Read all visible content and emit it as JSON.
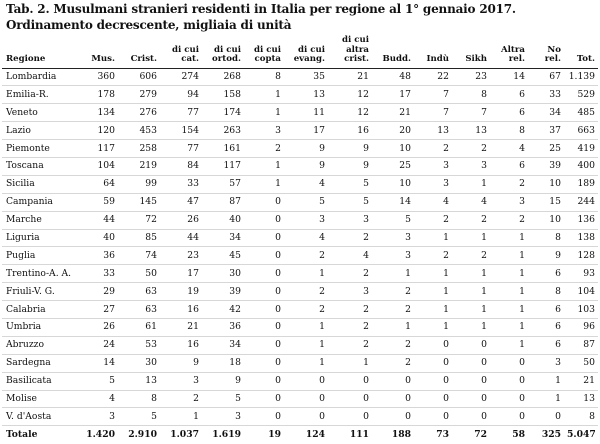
{
  "title": "Tab. 2. Musulmani stranieri residenti in Italia per regione al 1° gennaio 2017. Ordinamento decrescente, migliaia di unità",
  "columns": [
    "Regione",
    "Mus.",
    "Crist.",
    "di cui cat.",
    "di cui ortod.",
    "di cui copta",
    "di cui evang.",
    "di cui altra crist.",
    "Budd.",
    "Indù",
    "Sikh",
    "Altra rel.",
    "No rel.",
    "Tot."
  ],
  "rows": [
    [
      "Lombardia",
      "360",
      "606",
      "274",
      "268",
      "8",
      "35",
      "21",
      "48",
      "22",
      "23",
      "14",
      "67",
      "1.139"
    ],
    [
      "Emilia-R.",
      "178",
      "279",
      "94",
      "158",
      "1",
      "13",
      "12",
      "17",
      "7",
      "8",
      "6",
      "33",
      "529"
    ],
    [
      "Veneto",
      "134",
      "276",
      "77",
      "174",
      "1",
      "11",
      "12",
      "21",
      "7",
      "7",
      "6",
      "34",
      "485"
    ],
    [
      "Lazio",
      "120",
      "453",
      "154",
      "263",
      "3",
      "17",
      "16",
      "20",
      "13",
      "13",
      "8",
      "37",
      "663"
    ],
    [
      "Piemonte",
      "117",
      "258",
      "77",
      "161",
      "2",
      "9",
      "9",
      "10",
      "2",
      "2",
      "4",
      "25",
      "419"
    ],
    [
      "Toscana",
      "104",
      "219",
      "84",
      "117",
      "1",
      "9",
      "9",
      "25",
      "3",
      "3",
      "6",
      "39",
      "400"
    ],
    [
      "Sicilia",
      "64",
      "99",
      "33",
      "57",
      "1",
      "4",
      "5",
      "10",
      "3",
      "1",
      "2",
      "10",
      "189"
    ],
    [
      "Campania",
      "59",
      "145",
      "47",
      "87",
      "0",
      "5",
      "5",
      "14",
      "4",
      "4",
      "3",
      "15",
      "244"
    ],
    [
      "Marche",
      "44",
      "72",
      "26",
      "40",
      "0",
      "3",
      "3",
      "5",
      "2",
      "2",
      "2",
      "10",
      "136"
    ],
    [
      "Liguria",
      "40",
      "85",
      "44",
      "34",
      "0",
      "4",
      "2",
      "3",
      "1",
      "1",
      "1",
      "8",
      "138"
    ],
    [
      "Puglia",
      "36",
      "74",
      "23",
      "45",
      "0",
      "2",
      "4",
      "3",
      "2",
      "2",
      "1",
      "9",
      "128"
    ],
    [
      "Trentino-A. A.",
      "33",
      "50",
      "17",
      "30",
      "0",
      "1",
      "2",
      "1",
      "1",
      "1",
      "1",
      "6",
      "93"
    ],
    [
      "Friuli-V. G.",
      "29",
      "63",
      "19",
      "39",
      "0",
      "2",
      "3",
      "2",
      "1",
      "1",
      "1",
      "8",
      "104"
    ],
    [
      "Calabria",
      "27",
      "63",
      "16",
      "42",
      "0",
      "2",
      "2",
      "2",
      "1",
      "1",
      "1",
      "6",
      "103"
    ],
    [
      "Umbria",
      "26",
      "61",
      "21",
      "36",
      "0",
      "1",
      "2",
      "1",
      "1",
      "1",
      "1",
      "6",
      "96"
    ],
    [
      "Abruzzo",
      "24",
      "53",
      "16",
      "34",
      "0",
      "1",
      "2",
      "2",
      "0",
      "0",
      "1",
      "6",
      "87"
    ],
    [
      "Sardegna",
      "14",
      "30",
      "9",
      "18",
      "0",
      "1",
      "1",
      "2",
      "0",
      "0",
      "0",
      "3",
      "50"
    ],
    [
      "Basilicata",
      "5",
      "13",
      "3",
      "9",
      "0",
      "0",
      "0",
      "0",
      "0",
      "0",
      "0",
      "1",
      "21"
    ],
    [
      "Molise",
      "4",
      "8",
      "2",
      "5",
      "0",
      "0",
      "0",
      "0",
      "0",
      "0",
      "0",
      "1",
      "13"
    ],
    [
      "V. d'Aosta",
      "3",
      "5",
      "1",
      "3",
      "0",
      "0",
      "0",
      "0",
      "0",
      "0",
      "0",
      "0",
      "8"
    ]
  ],
  "totals": [
    "Totale",
    "1.420",
    "2.910",
    "1.037",
    "1.619",
    "19",
    "124",
    "111",
    "188",
    "73",
    "72",
    "58",
    "325",
    "5.047"
  ]
}
